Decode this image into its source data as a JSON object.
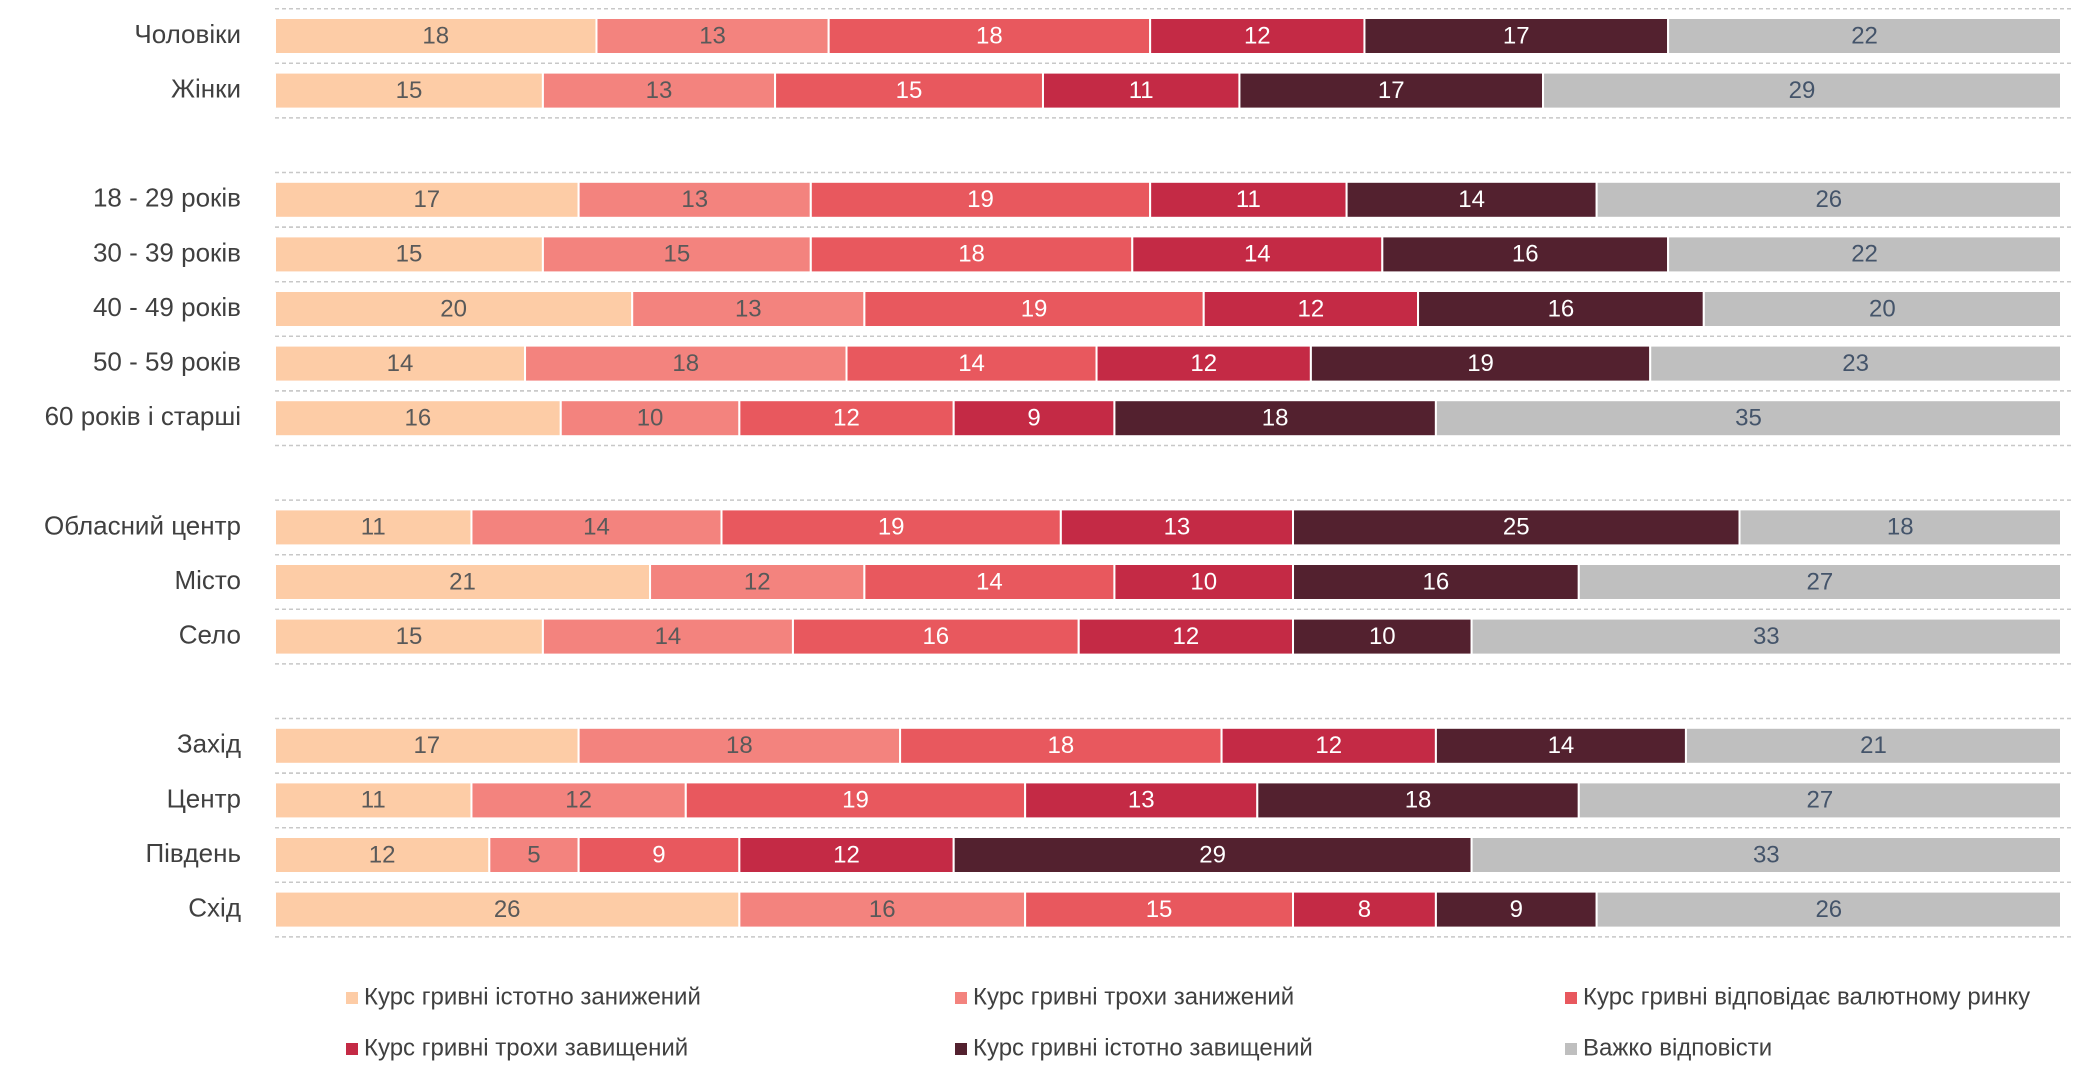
{
  "chart_data": {
    "type": "stacked-bar-horizontal",
    "categories": [
      "Чоловіки",
      "Жінки",
      null,
      "18 - 29 років",
      "30 - 39 років",
      "40 - 49 років",
      "50 - 59 років",
      "60 років і старші",
      null,
      "Обласний центр",
      "Місто",
      "Село",
      null,
      "Захід",
      "Центр",
      "Південь",
      "Схід"
    ],
    "xlim": [
      0,
      100
    ],
    "series": [
      {
        "name": "Курс гривні істотно занижений",
        "color": "#fdcca6",
        "label_color": "#595959",
        "values": [
          18,
          15,
          null,
          17,
          15,
          20,
          14,
          16,
          null,
          11,
          21,
          15,
          null,
          17,
          11,
          12,
          26
        ]
      },
      {
        "name": "Курс гривні трохи занижений",
        "color": "#f3837e",
        "label_color": "#595959",
        "values": [
          13,
          13,
          null,
          13,
          15,
          13,
          18,
          10,
          null,
          14,
          12,
          14,
          null,
          18,
          12,
          5,
          16
        ]
      },
      {
        "name": "Курс гривні відповідає валютному ринку",
        "color": "#e8585e",
        "label_color": "#ffffff",
        "values": [
          18,
          15,
          null,
          19,
          18,
          19,
          14,
          12,
          null,
          19,
          14,
          16,
          null,
          18,
          19,
          9,
          15
        ]
      },
      {
        "name": "Курс гривні трохи завищений",
        "color": "#c42a45",
        "label_color": "#ffffff",
        "values": [
          12,
          11,
          null,
          11,
          14,
          12,
          12,
          9,
          null,
          13,
          10,
          12,
          null,
          12,
          13,
          12,
          8
        ]
      },
      {
        "name": "Курс гривні істотно завищений",
        "color": "#53212f",
        "label_color": "#ffffff",
        "values": [
          17,
          17,
          null,
          14,
          16,
          16,
          19,
          18,
          null,
          25,
          16,
          10,
          null,
          14,
          18,
          29,
          9
        ]
      },
      {
        "name": "Важко відповісти",
        "color": "#bfbfbf",
        "label_color": "#44546a",
        "values": [
          22,
          29,
          null,
          26,
          22,
          20,
          23,
          35,
          null,
          18,
          27,
          33,
          null,
          21,
          27,
          33,
          26
        ]
      }
    ]
  }
}
